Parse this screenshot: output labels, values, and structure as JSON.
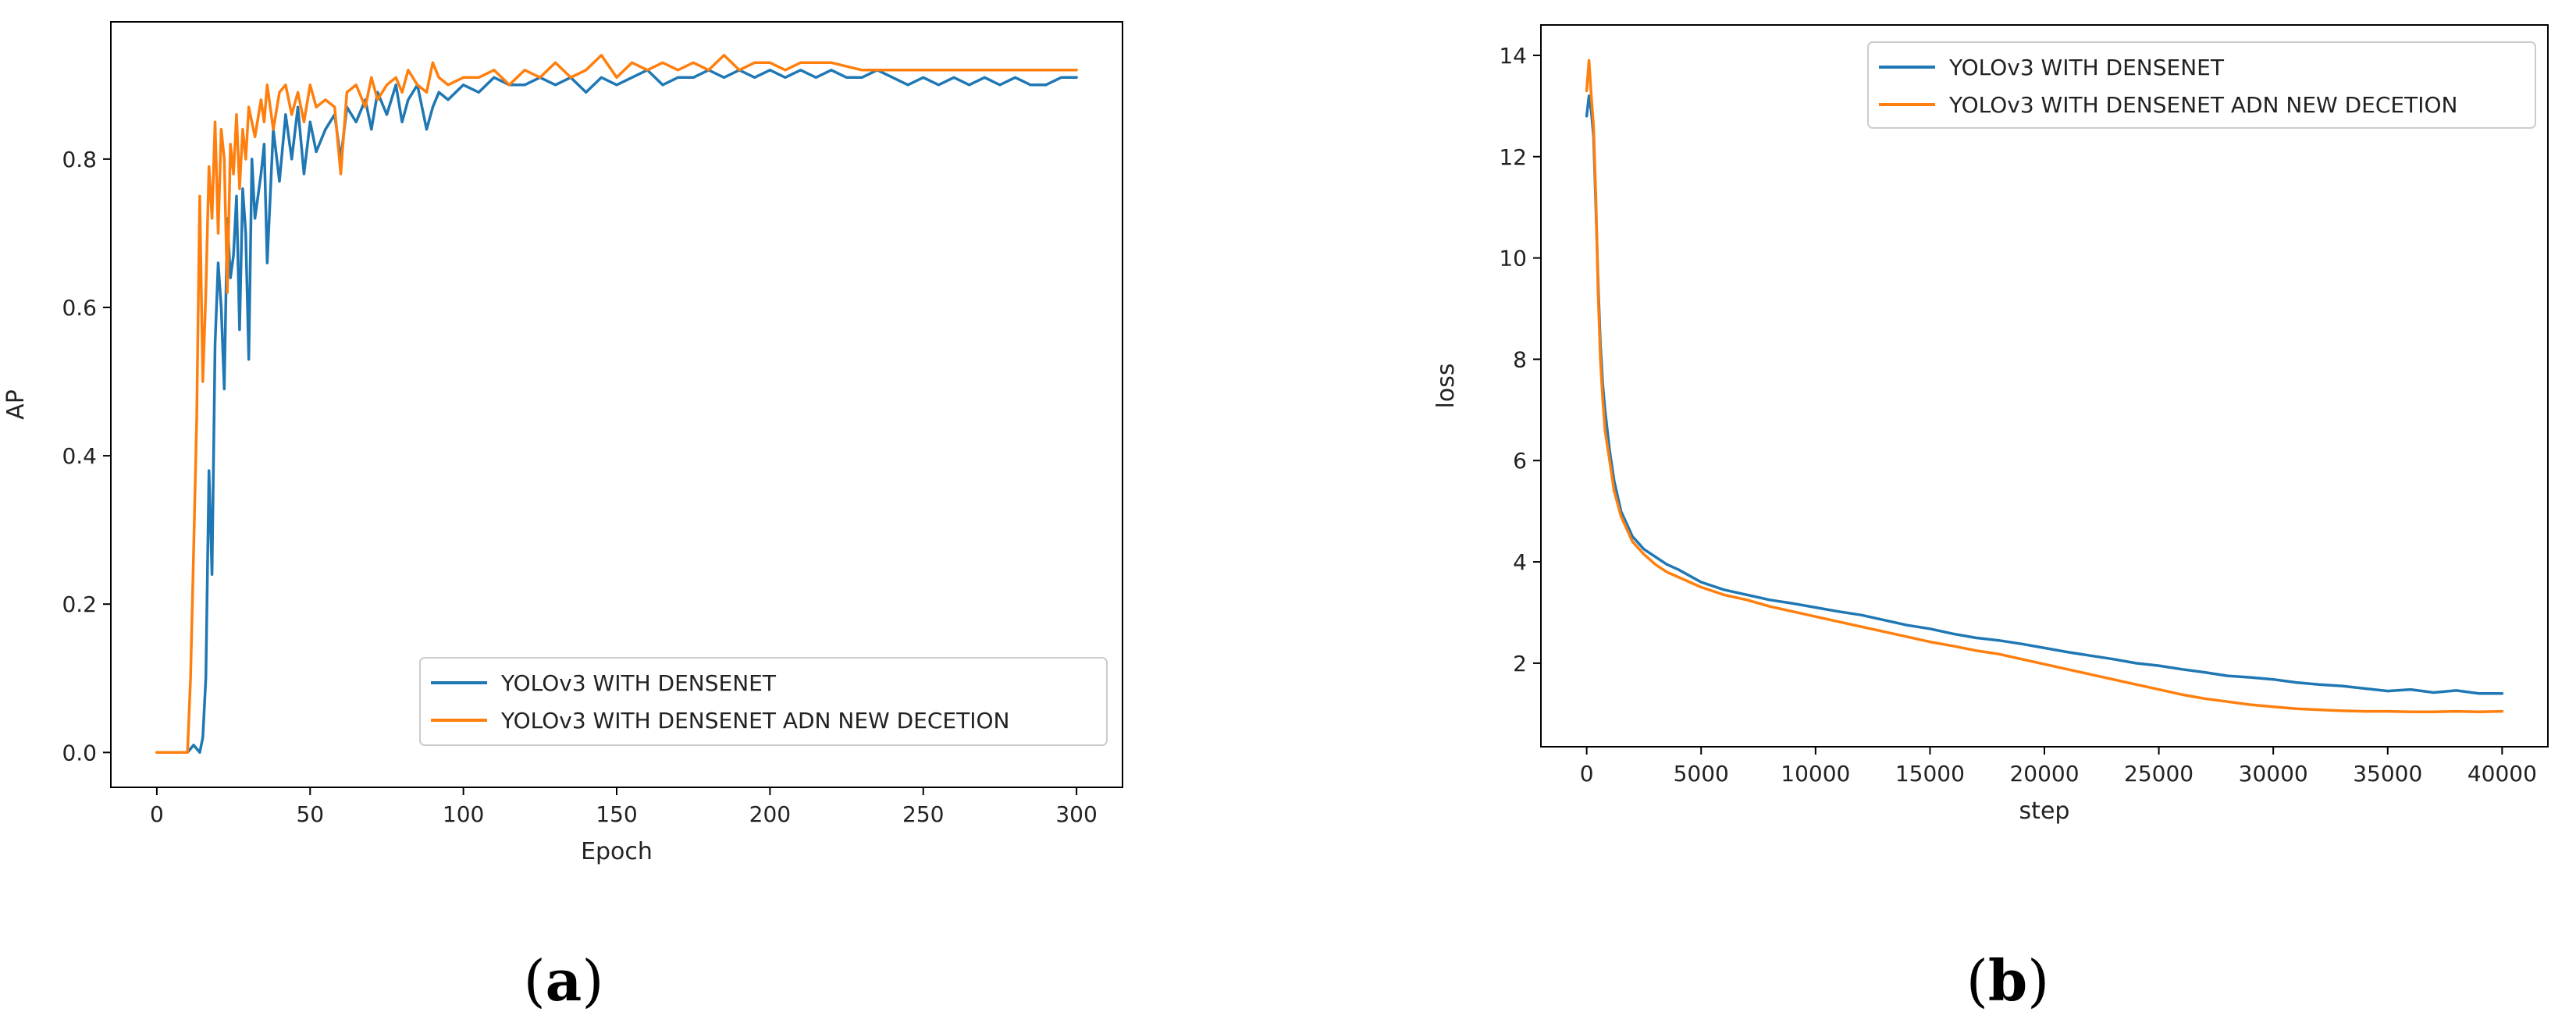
{
  "panel_labels": [
    "(a)",
    "(b)"
  ],
  "chart_data": [
    {
      "type": "line",
      "panel": "(a)",
      "title": "",
      "xlabel": "Epoch",
      "ylabel": "AP",
      "xlim": [
        -15,
        315
      ],
      "ylim": [
        -0.047,
        0.985
      ],
      "xticks": [
        0,
        50,
        100,
        150,
        200,
        250,
        300
      ],
      "yticks": [
        0.0,
        0.2,
        0.4,
        0.6,
        0.8
      ],
      "ytick_labels": [
        "0.0",
        "0.2",
        "0.4",
        "0.6",
        "0.8"
      ],
      "grid": false,
      "legend_position": "lower-right",
      "series": [
        {
          "name": "YOLOv3 WITH DENSENET",
          "color": "#1f77b4",
          "x": [
            0,
            5,
            10,
            12,
            14,
            15,
            16,
            17,
            18,
            19,
            20,
            21,
            22,
            23,
            24,
            25,
            26,
            27,
            28,
            29,
            30,
            31,
            32,
            34,
            35,
            36,
            38,
            40,
            42,
            44,
            46,
            48,
            50,
            52,
            55,
            58,
            60,
            62,
            65,
            68,
            70,
            72,
            75,
            78,
            80,
            82,
            85,
            88,
            90,
            92,
            95,
            100,
            105,
            110,
            115,
            120,
            125,
            130,
            135,
            140,
            145,
            150,
            155,
            160,
            165,
            170,
            175,
            180,
            185,
            190,
            195,
            200,
            205,
            210,
            215,
            220,
            225,
            230,
            235,
            240,
            245,
            250,
            255,
            260,
            265,
            270,
            275,
            280,
            285,
            290,
            295,
            300
          ],
          "values": [
            0.0,
            0.0,
            0.0,
            0.01,
            0.0,
            0.02,
            0.1,
            0.38,
            0.24,
            0.55,
            0.66,
            0.6,
            0.49,
            0.72,
            0.64,
            0.67,
            0.75,
            0.57,
            0.76,
            0.7,
            0.53,
            0.8,
            0.72,
            0.78,
            0.82,
            0.66,
            0.84,
            0.77,
            0.86,
            0.8,
            0.87,
            0.78,
            0.85,
            0.81,
            0.84,
            0.86,
            0.8,
            0.87,
            0.85,
            0.88,
            0.84,
            0.89,
            0.86,
            0.9,
            0.85,
            0.88,
            0.9,
            0.84,
            0.87,
            0.89,
            0.88,
            0.9,
            0.89,
            0.91,
            0.9,
            0.9,
            0.91,
            0.9,
            0.91,
            0.89,
            0.91,
            0.9,
            0.91,
            0.92,
            0.9,
            0.91,
            0.91,
            0.92,
            0.91,
            0.92,
            0.91,
            0.92,
            0.91,
            0.92,
            0.91,
            0.92,
            0.91,
            0.91,
            0.92,
            0.91,
            0.9,
            0.91,
            0.9,
            0.91,
            0.9,
            0.91,
            0.9,
            0.91,
            0.9,
            0.9,
            0.91,
            0.91
          ]
        },
        {
          "name": "YOLOv3 WITH DENSENET ADN NEW DECETION",
          "color": "#ff7f0e",
          "x": [
            0,
            5,
            10,
            11,
            12,
            13,
            14,
            15,
            16,
            17,
            18,
            19,
            20,
            21,
            22,
            23,
            24,
            25,
            26,
            27,
            28,
            29,
            30,
            32,
            34,
            35,
            36,
            38,
            40,
            42,
            44,
            46,
            48,
            50,
            52,
            55,
            58,
            60,
            62,
            65,
            68,
            70,
            72,
            75,
            78,
            80,
            82,
            85,
            88,
            90,
            92,
            95,
            100,
            105,
            110,
            115,
            120,
            125,
            130,
            135,
            140,
            145,
            150,
            155,
            160,
            165,
            170,
            175,
            180,
            185,
            190,
            195,
            200,
            205,
            210,
            220,
            230,
            240,
            250,
            260,
            270,
            280,
            290,
            300
          ],
          "values": [
            0.0,
            0.0,
            0.0,
            0.1,
            0.27,
            0.45,
            0.75,
            0.5,
            0.62,
            0.79,
            0.72,
            0.85,
            0.7,
            0.84,
            0.8,
            0.62,
            0.82,
            0.78,
            0.86,
            0.76,
            0.84,
            0.8,
            0.87,
            0.83,
            0.88,
            0.85,
            0.9,
            0.84,
            0.89,
            0.9,
            0.86,
            0.89,
            0.85,
            0.9,
            0.87,
            0.88,
            0.87,
            0.78,
            0.89,
            0.9,
            0.87,
            0.91,
            0.88,
            0.9,
            0.91,
            0.89,
            0.92,
            0.9,
            0.89,
            0.93,
            0.91,
            0.9,
            0.91,
            0.91,
            0.92,
            0.9,
            0.92,
            0.91,
            0.93,
            0.91,
            0.92,
            0.94,
            0.91,
            0.93,
            0.92,
            0.93,
            0.92,
            0.93,
            0.92,
            0.94,
            0.92,
            0.93,
            0.93,
            0.92,
            0.93,
            0.93,
            0.92,
            0.92,
            0.92,
            0.92,
            0.92,
            0.92,
            0.92,
            0.92
          ]
        }
      ]
    },
    {
      "type": "line",
      "panel": "(b)",
      "title": "",
      "xlabel": "step",
      "ylabel": "loss",
      "xlim": [
        -2000,
        42000
      ],
      "ylim": [
        0.35,
        14.6
      ],
      "xticks": [
        0,
        5000,
        10000,
        15000,
        20000,
        25000,
        30000,
        35000,
        40000
      ],
      "yticks": [
        2,
        4,
        6,
        8,
        10,
        12,
        14
      ],
      "grid": false,
      "legend_position": "top-right",
      "series": [
        {
          "name": "YOLOv3 WITH DENSENET",
          "color": "#1f77b4",
          "x": [
            0,
            100,
            200,
            300,
            400,
            500,
            600,
            700,
            800,
            1000,
            1200,
            1500,
            1800,
            2000,
            2500,
            3000,
            3500,
            4000,
            5000,
            6000,
            7000,
            8000,
            9000,
            10000,
            11000,
            12000,
            13000,
            14000,
            15000,
            16000,
            17000,
            18000,
            19000,
            20000,
            21000,
            22000,
            23000,
            24000,
            25000,
            26000,
            27000,
            28000,
            29000,
            30000,
            31000,
            32000,
            33000,
            34000,
            35000,
            36000,
            37000,
            38000,
            39000,
            40000
          ],
          "values": [
            12.8,
            13.2,
            12.9,
            12.4,
            11.0,
            9.5,
            8.3,
            7.5,
            7.0,
            6.2,
            5.6,
            5.0,
            4.7,
            4.5,
            4.25,
            4.1,
            3.95,
            3.85,
            3.6,
            3.45,
            3.35,
            3.25,
            3.18,
            3.1,
            3.02,
            2.95,
            2.85,
            2.75,
            2.68,
            2.58,
            2.5,
            2.45,
            2.38,
            2.3,
            2.22,
            2.15,
            2.08,
            2.0,
            1.95,
            1.88,
            1.82,
            1.75,
            1.72,
            1.68,
            1.62,
            1.58,
            1.55,
            1.5,
            1.45,
            1.48,
            1.42,
            1.46,
            1.4,
            1.4
          ]
        },
        {
          "name": "YOLOv3 WITH DENSENET ADN NEW DECETION",
          "color": "#ff7f0e",
          "x": [
            0,
            100,
            200,
            300,
            400,
            500,
            600,
            700,
            800,
            1000,
            1200,
            1500,
            1800,
            2000,
            2500,
            3000,
            3500,
            4000,
            5000,
            6000,
            7000,
            8000,
            9000,
            10000,
            11000,
            12000,
            13000,
            14000,
            15000,
            16000,
            17000,
            18000,
            19000,
            20000,
            21000,
            22000,
            23000,
            24000,
            25000,
            26000,
            27000,
            28000,
            29000,
            30000,
            31000,
            32000,
            33000,
            34000,
            35000,
            36000,
            37000,
            38000,
            39000,
            40000
          ],
          "values": [
            13.3,
            13.9,
            13.2,
            12.6,
            11.2,
            9.3,
            8.0,
            7.2,
            6.6,
            6.0,
            5.4,
            4.9,
            4.6,
            4.4,
            4.15,
            3.95,
            3.8,
            3.7,
            3.5,
            3.35,
            3.25,
            3.12,
            3.02,
            2.92,
            2.82,
            2.72,
            2.62,
            2.52,
            2.42,
            2.34,
            2.25,
            2.18,
            2.08,
            1.98,
            1.88,
            1.78,
            1.68,
            1.58,
            1.48,
            1.38,
            1.3,
            1.24,
            1.18,
            1.14,
            1.1,
            1.08,
            1.06,
            1.05,
            1.05,
            1.04,
            1.04,
            1.05,
            1.04,
            1.05
          ]
        }
      ]
    }
  ]
}
